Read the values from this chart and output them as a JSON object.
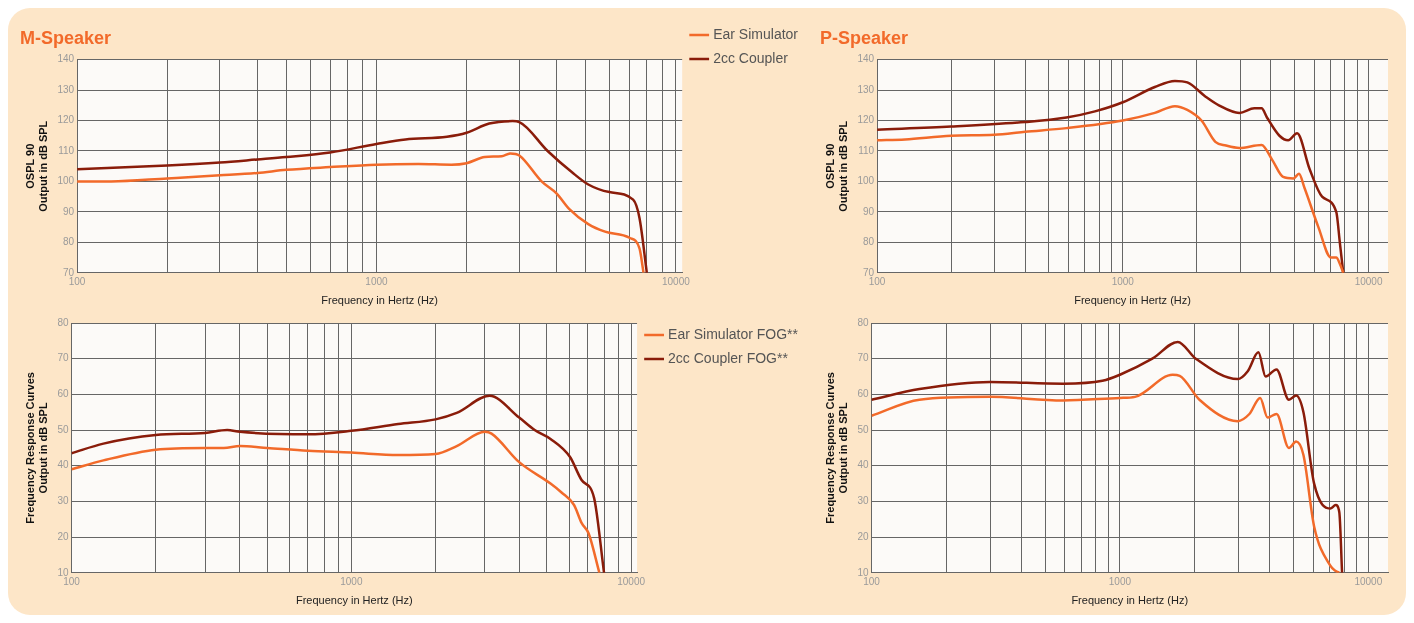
{
  "chart_data": [
    {
      "type": "line",
      "title": "M-Speaker",
      "xlabel": "Frequency in Hertz (Hz)",
      "ylabel": [
        "OSPL 90",
        "Output in dB SPL"
      ],
      "log": "x",
      "grid": true,
      "legend": "right",
      "marker": "none",
      "line_style": "solid",
      "xlim": [
        100,
        10500
      ],
      "xticks": [
        100,
        {
          "value": 200,
          "label": null
        },
        {
          "value": 300,
          "label": null
        },
        {
          "value": 400,
          "label": null
        },
        {
          "value": 500,
          "label": null
        },
        {
          "value": 600,
          "label": null
        },
        {
          "value": 700,
          "label": null
        },
        {
          "value": 800,
          "label": null
        },
        {
          "value": 900,
          "label": null
        },
        1000,
        {
          "value": 2000,
          "label": null
        },
        {
          "value": 3000,
          "label": null
        },
        {
          "value": 4000,
          "label": null
        },
        {
          "value": 5000,
          "label": null
        },
        {
          "value": 6000,
          "label": null
        },
        {
          "value": 7000,
          "label": null
        },
        {
          "value": 8000,
          "label": null
        },
        {
          "value": 9000,
          "label": null
        },
        10000
      ],
      "ylim": [
        70,
        140
      ],
      "yticks": [
        70,
        80,
        90,
        100,
        110,
        120,
        130,
        140
      ],
      "series": [
        {
          "name": "Ear Simulator",
          "color": "#f26a2a",
          "x": [
            100,
            130,
            200,
            300,
            400,
            500,
            700,
            1000,
            1380,
            1780,
            2000,
            2300,
            2620,
            2800,
            3000,
            3560,
            4000,
            4400,
            5100,
            5800,
            7000,
            7560,
            7800
          ],
          "values": [
            100,
            100,
            101,
            102,
            102.8,
            103.8,
            104.7,
            105.5,
            105.7,
            105.5,
            106,
            108,
            108.3,
            109.2,
            108.5,
            100,
            96,
            91,
            86,
            83.5,
            81.5,
            78,
            70
          ]
        },
        {
          "name": "2cc Coupler",
          "color": "#8a1c0a",
          "x": [
            100,
            200,
            300,
            400,
            500,
            700,
            1000,
            1250,
            1720,
            2000,
            2380,
            2850,
            3000,
            3730,
            4500,
            5100,
            6000,
            7200,
            7560,
            8000
          ],
          "values": [
            104,
            105.2,
            106.2,
            107.2,
            108,
            109.5,
            112.3,
            113.8,
            114.7,
            116,
            119,
            119.8,
            119.5,
            110,
            103,
            99,
            96.5,
            94,
            88,
            70
          ]
        }
      ]
    },
    {
      "type": "line",
      "title": "P-Speaker",
      "xlabel": "Frequency in Hertz (Hz)",
      "ylabel": [
        "OSPL 90",
        "Output in dB SPL"
      ],
      "log": "x",
      "grid": true,
      "marker": "none",
      "line_style": "solid",
      "xlim": [
        100,
        12000
      ],
      "xticks": [
        100,
        {
          "value": 200,
          "label": null
        },
        {
          "value": 300,
          "label": null
        },
        {
          "value": 400,
          "label": null
        },
        {
          "value": 500,
          "label": null
        },
        {
          "value": 600,
          "label": null
        },
        {
          "value": 700,
          "label": null
        },
        {
          "value": 800,
          "label": null
        },
        {
          "value": 900,
          "label": null
        },
        1000,
        {
          "value": 2000,
          "label": null
        },
        {
          "value": 3000,
          "label": null
        },
        {
          "value": 4000,
          "label": null
        },
        {
          "value": 5000,
          "label": null
        },
        {
          "value": 6000,
          "label": null
        },
        {
          "value": 7000,
          "label": null
        },
        {
          "value": 8000,
          "label": null
        },
        {
          "value": 9000,
          "label": null
        },
        10000
      ],
      "ylim": [
        70,
        140
      ],
      "yticks": [
        70,
        80,
        90,
        100,
        110,
        120,
        130,
        140
      ],
      "series": [
        {
          "color": "#f26a2a",
          "x": [
            100,
            130,
            200,
            300,
            400,
            590,
            1000,
            1350,
            1630,
            1830,
            2090,
            2380,
            2630,
            2980,
            3670,
            4060,
            4490,
            4950,
            5210,
            5480,
            6250,
            7030,
            7390,
            7640,
            7890
          ],
          "values": [
            113.5,
            113.8,
            115,
            115.3,
            116.3,
            117.5,
            120,
            122.5,
            124.7,
            123.5,
            120,
            113,
            111.8,
            111,
            112,
            107,
            101.5,
            101,
            102.5,
            98,
            85,
            75,
            75,
            73,
            70
          ]
        },
        {
          "color": "#8a1c0a",
          "x": [
            100,
            200,
            400,
            590,
            770,
            1000,
            1350,
            1630,
            1830,
            2160,
            2460,
            2980,
            3430,
            3670,
            3860,
            4340,
            4710,
            5120,
            5760,
            6470,
            7390,
            7640,
            7890
          ],
          "values": [
            117,
            118,
            119.5,
            121,
            123,
            126,
            131,
            133,
            132.5,
            128,
            125,
            122.5,
            124,
            124,
            121,
            115,
            113.5,
            115.8,
            104,
            95,
            90,
            80,
            70
          ]
        }
      ]
    },
    {
      "type": "line",
      "xlabel": "Frequency in Hertz (Hz)",
      "ylabel": [
        "Frequency Response Curves",
        "Output in dB SPL"
      ],
      "log": "x",
      "grid": true,
      "legend": "right",
      "marker": "none",
      "line_style": "solid",
      "xlim": [
        100,
        10500
      ],
      "xticks": [
        100,
        {
          "value": 200,
          "label": null
        },
        {
          "value": 300,
          "label": null
        },
        {
          "value": 400,
          "label": null
        },
        {
          "value": 500,
          "label": null
        },
        {
          "value": 600,
          "label": null
        },
        {
          "value": 700,
          "label": null
        },
        {
          "value": 800,
          "label": null
        },
        {
          "value": 900,
          "label": null
        },
        1000,
        {
          "value": 2000,
          "label": null
        },
        {
          "value": 3000,
          "label": null
        },
        {
          "value": 4000,
          "label": null
        },
        {
          "value": 5000,
          "label": null
        },
        {
          "value": 6000,
          "label": null
        },
        {
          "value": 7000,
          "label": null
        },
        {
          "value": 8000,
          "label": null
        },
        {
          "value": 9000,
          "label": null
        },
        10000
      ],
      "ylim": [
        10,
        80
      ],
      "yticks": [
        10,
        20,
        30,
        40,
        50,
        60,
        70,
        80
      ],
      "series": [
        {
          "name": "Ear Simulator FOG**",
          "color": "#f26a2a",
          "x": [
            100,
            130,
            200,
            300,
            350,
            400,
            500,
            700,
            1000,
            1470,
            2000,
            2380,
            3000,
            3170,
            3980,
            5150,
            5640,
            6250,
            6650,
            7050,
            7700
          ],
          "values": [
            39,
            41.5,
            44.5,
            45,
            45,
            45.5,
            45,
            44.2,
            43.7,
            43,
            43.3,
            45.5,
            49.5,
            49,
            41,
            35,
            32.5,
            29,
            24,
            21,
            10
          ]
        },
        {
          "name": "2cc Coupler FOG**",
          "color": "#8a1c0a",
          "x": [
            100,
            130,
            200,
            300,
            360,
            400,
            700,
            1000,
            1470,
            2000,
            2380,
            3120,
            3980,
            4520,
            5150,
            6040,
            6650,
            7370,
            8000
          ],
          "values": [
            43.5,
            46.2,
            48.6,
            49.2,
            50,
            49.5,
            48.8,
            49.8,
            51.7,
            53,
            54.8,
            59.6,
            53.5,
            50,
            47.5,
            42.5,
            36,
            31,
            10
          ]
        }
      ]
    },
    {
      "type": "line",
      "xlabel": "Frequency in Hertz (Hz)",
      "ylabel": [
        "Frequency Response Curves",
        "Output in dB SPL"
      ],
      "log": "x",
      "grid": true,
      "marker": "none",
      "line_style": "solid",
      "xlim": [
        100,
        12000
      ],
      "xticks": [
        100,
        {
          "value": 200,
          "label": null
        },
        {
          "value": 300,
          "label": null
        },
        {
          "value": 400,
          "label": null
        },
        {
          "value": 500,
          "label": null
        },
        {
          "value": 600,
          "label": null
        },
        {
          "value": 700,
          "label": null
        },
        {
          "value": 800,
          "label": null
        },
        {
          "value": 900,
          "label": null
        },
        1000,
        {
          "value": 2000,
          "label": null
        },
        {
          "value": 3000,
          "label": null
        },
        {
          "value": 4000,
          "label": null
        },
        {
          "value": 5000,
          "label": null
        },
        {
          "value": 6000,
          "label": null
        },
        {
          "value": 7000,
          "label": null
        },
        {
          "value": 8000,
          "label": null
        },
        {
          "value": 9000,
          "label": null
        },
        10000
      ],
      "ylim": [
        10,
        80
      ],
      "yticks": [
        10,
        20,
        30,
        40,
        50,
        60,
        70,
        80
      ],
      "series": [
        {
          "color": "#f26a2a",
          "x": [
            100,
            156,
            300,
            590,
            1000,
            1150,
            1630,
            1740,
            2090,
            2980,
            3320,
            3670,
            3930,
            4270,
            4790,
            5120,
            5480,
            6050,
            7030,
            7390,
            7640
          ],
          "values": [
            54,
            58.5,
            59.3,
            58.3,
            59,
            59.3,
            65.5,
            65.2,
            58.5,
            52.5,
            54.5,
            59,
            53.5,
            54.5,
            45,
            46.8,
            43,
            23,
            12,
            10.5,
            10
          ]
        },
        {
          "color": "#8a1c0a",
          "x": [
            100,
            156,
            300,
            590,
            850,
            1000,
            1350,
            1710,
            2020,
            2980,
            3270,
            3610,
            3860,
            4270,
            4790,
            5120,
            5480,
            6050,
            7030,
            7390,
            7640,
            7840
          ],
          "values": [
            58.5,
            61.5,
            63.5,
            63,
            63.8,
            65.5,
            70,
            74.7,
            70,
            64.3,
            66.5,
            71.8,
            65,
            67,
            58.5,
            59.7,
            55,
            35,
            28,
            29,
            27,
            10
          ]
        }
      ]
    }
  ]
}
